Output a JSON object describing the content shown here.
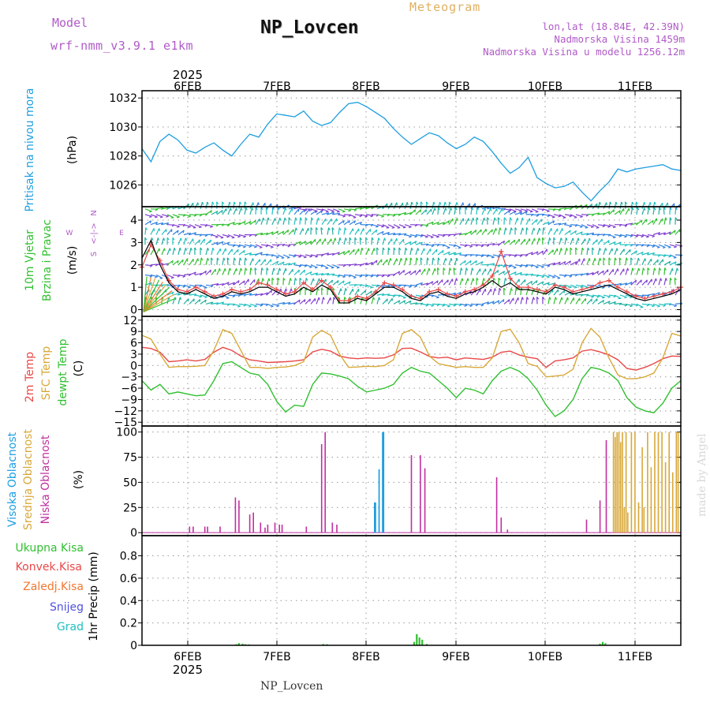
{
  "header": {
    "model_label": "Model",
    "model_name": "wrf-nmm_v3.9.1 e1km",
    "title": "NP_Lovcen",
    "meteogram": "Meteogram",
    "lonlat": "lon,lat (18.84E, 42.39N)",
    "elevation": "Nadmorska Visina 1459m",
    "model_elevation": "Nadmorska Visina u modelu 1256.12m"
  },
  "footer": {
    "station": "NP_Lovcen",
    "credit": "made by Angel"
  },
  "colors": {
    "pressure": "#1e9ee0",
    "temp2m": "#e84848",
    "sfc": "#d8a838",
    "dewpt": "#30c030",
    "high_cloud": "#1e9ee0",
    "mid_cloud": "#d8a838",
    "low_cloud": "#c030a0",
    "total_precip": "#30c030",
    "convective": "#e84848",
    "freezing": "#f07830",
    "snow": "#5050e0",
    "hail": "#20c0c0"
  },
  "chart_data": [
    {
      "type": "line",
      "panel": "pressure",
      "labels": [
        "Pritisak na nivou mora",
        "(hPa)"
      ],
      "x_ticks": [
        "6FEB",
        "7FEB",
        "8FEB",
        "9FEB",
        "10FEB",
        "11FEB"
      ],
      "x_year": "2025",
      "xlim": [
        5.5,
        11.5
      ],
      "ylim": [
        1024.5,
        1032.5
      ],
      "yticks": [
        "1026",
        "1028",
        "1030",
        "1032"
      ],
      "ytick_values": [
        1026,
        1028,
        1030,
        1032
      ],
      "x": [
        5.5,
        5.6,
        5.7,
        5.8,
        5.9,
        6.0,
        6.1,
        6.2,
        6.3,
        6.4,
        6.5,
        6.6,
        6.7,
        6.8,
        6.9,
        7.0,
        7.1,
        7.2,
        7.3,
        7.4,
        7.5,
        7.6,
        7.7,
        7.8,
        7.9,
        8.0,
        8.1,
        8.2,
        8.3,
        8.4,
        8.5,
        8.6,
        8.7,
        8.8,
        8.9,
        9.0,
        9.1,
        9.2,
        9.3,
        9.4,
        9.5,
        9.6,
        9.7,
        9.8,
        9.9,
        10.0,
        10.1,
        10.2,
        10.3,
        10.4,
        10.5,
        10.6,
        10.7,
        10.8,
        10.9,
        11.0,
        11.1,
        11.2,
        11.3,
        11.4,
        11.5
      ],
      "values": [
        1028.5,
        1027.6,
        1029.0,
        1029.5,
        1029.1,
        1028.4,
        1028.2,
        1028.6,
        1028.9,
        1028.4,
        1028.0,
        1028.8,
        1029.5,
        1029.3,
        1030.2,
        1030.9,
        1030.8,
        1030.7,
        1031.1,
        1030.4,
        1030.1,
        1030.3,
        1031.0,
        1031.6,
        1031.7,
        1031.4,
        1031.0,
        1030.6,
        1029.9,
        1029.3,
        1028.8,
        1029.2,
        1029.6,
        1029.4,
        1028.9,
        1028.5,
        1028.8,
        1029.3,
        1029.0,
        1028.3,
        1027.5,
        1026.8,
        1027.2,
        1027.9,
        1026.5,
        1026.1,
        1025.8,
        1025.9,
        1026.2,
        1025.5,
        1024.9,
        1025.6,
        1026.2,
        1027.1,
        1026.9,
        1027.1,
        1027.2,
        1027.3,
        1027.4,
        1027.1,
        1027.0
      ]
    },
    {
      "type": "line",
      "panel": "wind",
      "labels": [
        "10m Vjetar",
        "Brzina i Pravac",
        "(m/s)"
      ],
      "compass": [
        "N",
        "E",
        "S",
        "W"
      ],
      "xlim": [
        5.5,
        11.5
      ],
      "ylim": [
        -0.3,
        4.6
      ],
      "yticks": [
        "0",
        "1",
        "2",
        "3",
        "4"
      ],
      "ytick_values": [
        0,
        1,
        2,
        3,
        4
      ],
      "series": [
        {
          "name": "speed",
          "color": "#e84848",
          "x": [
            5.5,
            5.6,
            5.7,
            5.8,
            5.9,
            6.0,
            6.1,
            6.2,
            6.3,
            6.4,
            6.5,
            6.6,
            6.7,
            6.8,
            6.9,
            7.0,
            7.1,
            7.2,
            7.3,
            7.4,
            7.5,
            7.6,
            7.7,
            7.8,
            7.9,
            8.0,
            8.1,
            8.2,
            8.3,
            8.4,
            8.5,
            8.6,
            8.7,
            8.8,
            8.9,
            9.0,
            9.1,
            9.2,
            9.3,
            9.4,
            9.5,
            9.6,
            9.7,
            9.8,
            9.9,
            10.0,
            10.1,
            10.2,
            10.3,
            10.4,
            10.5,
            10.6,
            10.7,
            10.8,
            10.9,
            11.0,
            11.1,
            11.2,
            11.3,
            11.4,
            11.5
          ],
          "values": [
            1.9,
            2.9,
            2.2,
            1.3,
            0.9,
            0.8,
            1.0,
            0.8,
            0.6,
            0.7,
            0.9,
            0.8,
            0.9,
            1.2,
            1.1,
            0.9,
            0.7,
            0.8,
            1.2,
            0.9,
            1.3,
            1.0,
            0.4,
            0.4,
            0.6,
            0.5,
            0.8,
            1.2,
            1.1,
            0.9,
            0.6,
            0.5,
            0.8,
            0.9,
            0.7,
            0.6,
            0.8,
            0.9,
            1.1,
            1.5,
            2.6,
            1.4,
            1.0,
            1.0,
            0.9,
            0.8,
            1.1,
            1.0,
            0.8,
            0.9,
            1.0,
            1.2,
            1.3,
            1.0,
            0.8,
            0.6,
            0.5,
            0.6,
            0.7,
            0.8,
            1.0
          ]
        },
        {
          "name": "gust",
          "color": "#000000",
          "x": [
            5.5,
            5.6,
            5.7,
            5.8,
            5.9,
            6.0,
            6.1,
            6.2,
            6.3,
            6.4,
            6.5,
            6.6,
            6.7,
            6.8,
            6.9,
            7.0,
            7.1,
            7.2,
            7.3,
            7.4,
            7.5,
            7.6,
            7.7,
            7.8,
            7.9,
            8.0,
            8.1,
            8.2,
            8.3,
            8.4,
            8.5,
            8.6,
            8.7,
            8.8,
            8.9,
            9.0,
            9.1,
            9.2,
            9.3,
            9.4,
            9.5,
            9.6,
            9.7,
            9.8,
            9.9,
            10.0,
            10.1,
            10.2,
            10.3,
            10.4,
            10.5,
            10.6,
            10.7,
            10.8,
            10.9,
            11.0,
            11.1,
            11.2,
            11.3,
            11.4,
            11.5
          ],
          "values": [
            2.3,
            3.1,
            2.0,
            1.2,
            0.8,
            0.7,
            0.9,
            0.7,
            0.5,
            0.6,
            0.8,
            0.7,
            0.8,
            1.0,
            1.0,
            0.8,
            0.6,
            0.7,
            1.0,
            0.8,
            1.1,
            0.9,
            0.3,
            0.3,
            0.5,
            0.4,
            0.7,
            1.0,
            1.0,
            0.8,
            0.5,
            0.4,
            0.7,
            0.8,
            0.6,
            0.5,
            0.7,
            0.8,
            1.0,
            1.3,
            1.0,
            1.2,
            0.9,
            0.9,
            0.8,
            0.7,
            1.0,
            0.9,
            0.7,
            0.8,
            0.9,
            1.0,
            1.1,
            0.9,
            0.7,
            0.5,
            0.4,
            0.5,
            0.6,
            0.7,
            0.9
          ]
        }
      ]
    },
    {
      "type": "line",
      "panel": "temperature",
      "labels": [
        "2m Temp",
        "SFC Temp",
        "dewpt Temp",
        "(C)"
      ],
      "xlim": [
        5.5,
        11.5
      ],
      "ylim": [
        -16,
        13
      ],
      "yticks": [
        "12",
        "9",
        "6",
        "3",
        "0",
        "−3",
        "−6",
        "−9",
        "−12",
        "−15"
      ],
      "ytick_values": [
        12,
        9,
        6,
        3,
        0,
        -3,
        -6,
        -9,
        -12,
        -15
      ],
      "series": [
        {
          "name": "2m Temp",
          "color": "#e84848",
          "x": [
            5.5,
            5.6,
            5.7,
            5.8,
            5.9,
            6.0,
            6.1,
            6.2,
            6.3,
            6.4,
            6.5,
            6.6,
            6.7,
            6.8,
            6.9,
            7.0,
            7.1,
            7.2,
            7.3,
            7.4,
            7.5,
            7.6,
            7.7,
            7.8,
            7.9,
            8.0,
            8.1,
            8.2,
            8.3,
            8.4,
            8.5,
            8.6,
            8.7,
            8.8,
            8.9,
            9.0,
            9.1,
            9.2,
            9.3,
            9.4,
            9.5,
            9.6,
            9.7,
            9.8,
            9.9,
            10.0,
            10.1,
            10.2,
            10.3,
            10.4,
            10.5,
            10.6,
            10.7,
            10.8,
            10.9,
            11.0,
            11.1,
            11.2,
            11.3,
            11.4,
            11.5
          ],
          "values": [
            4.8,
            4.5,
            3.5,
            1.0,
            1.2,
            1.5,
            1.2,
            1.6,
            3.5,
            4.8,
            4.0,
            2.5,
            1.5,
            1.2,
            0.8,
            0.9,
            1.0,
            1.2,
            1.5,
            3.6,
            4.3,
            3.8,
            2.5,
            2.0,
            1.8,
            2.0,
            1.9,
            2.0,
            2.8,
            4.5,
            4.6,
            3.6,
            2.4,
            2.0,
            2.2,
            1.5,
            2.0,
            1.8,
            1.6,
            2.2,
            3.5,
            3.8,
            2.8,
            2.2,
            1.8,
            -0.5,
            1.2,
            1.5,
            2.0,
            3.8,
            4.2,
            3.6,
            2.8,
            1.5,
            -0.8,
            -1.2,
            -0.5,
            0.5,
            1.8,
            2.5,
            2.4
          ]
        },
        {
          "name": "SFC Temp",
          "color": "#d8a838",
          "x": [
            5.5,
            5.6,
            5.7,
            5.8,
            5.9,
            6.0,
            6.1,
            6.2,
            6.3,
            6.4,
            6.5,
            6.6,
            6.7,
            6.8,
            6.9,
            7.0,
            7.1,
            7.2,
            7.3,
            7.4,
            7.5,
            7.6,
            7.7,
            7.8,
            7.9,
            8.0,
            8.1,
            8.2,
            8.3,
            8.4,
            8.5,
            8.6,
            8.7,
            8.8,
            8.9,
            9.0,
            9.1,
            9.2,
            9.3,
            9.4,
            9.5,
            9.6,
            9.7,
            9.8,
            9.9,
            10.0,
            10.1,
            10.2,
            10.3,
            10.4,
            10.5,
            10.6,
            10.7,
            10.8,
            10.9,
            11.0,
            11.1,
            11.2,
            11.3,
            11.4,
            11.5
          ],
          "values": [
            8.0,
            7.0,
            3.0,
            -0.5,
            -0.3,
            -0.3,
            -0.2,
            0.0,
            4.0,
            9.5,
            8.5,
            4.0,
            -0.5,
            -0.5,
            -0.8,
            -0.5,
            -0.4,
            0.0,
            1.0,
            7.5,
            9.3,
            8.0,
            3.0,
            -0.5,
            -0.4,
            -0.2,
            -0.3,
            0.0,
            1.5,
            8.5,
            9.5,
            7.5,
            2.5,
            0.5,
            0.0,
            -0.5,
            -0.3,
            -0.5,
            -0.5,
            2.0,
            9.0,
            9.6,
            6.0,
            0.5,
            -0.2,
            -3.0,
            -2.8,
            -2.5,
            -1.0,
            6.0,
            9.8,
            7.5,
            2.0,
            -2.5,
            -3.5,
            -3.5,
            -3.0,
            -2.0,
            2.0,
            8.5,
            7.8
          ]
        },
        {
          "name": "dewpt Temp",
          "color": "#30c030",
          "x": [
            5.5,
            5.6,
            5.7,
            5.8,
            5.9,
            6.0,
            6.1,
            6.2,
            6.3,
            6.4,
            6.5,
            6.6,
            6.7,
            6.8,
            6.9,
            7.0,
            7.1,
            7.2,
            7.3,
            7.4,
            7.5,
            7.6,
            7.7,
            7.8,
            7.9,
            8.0,
            8.1,
            8.2,
            8.3,
            8.4,
            8.5,
            8.6,
            8.7,
            8.8,
            8.9,
            9.0,
            9.1,
            9.2,
            9.3,
            9.4,
            9.5,
            9.6,
            9.7,
            9.8,
            9.9,
            10.0,
            10.1,
            10.2,
            10.3,
            10.4,
            10.5,
            10.6,
            10.7,
            10.8,
            10.9,
            11.0,
            11.1,
            11.2,
            11.3,
            11.4,
            11.5
          ],
          "values": [
            -4.0,
            -6.5,
            -5.0,
            -7.5,
            -7.0,
            -7.5,
            -8.0,
            -7.8,
            -4.0,
            0.5,
            1.0,
            -0.5,
            -2.0,
            -2.5,
            -5.0,
            -9.5,
            -12.3,
            -10.5,
            -10.8,
            -5.0,
            -2.0,
            -2.2,
            -2.8,
            -3.5,
            -5.5,
            -7.0,
            -6.5,
            -6.0,
            -5.0,
            -2.0,
            -0.5,
            -1.5,
            -2.0,
            -4.0,
            -6.0,
            -8.5,
            -6.0,
            -6.5,
            -7.5,
            -4.0,
            -1.5,
            -0.5,
            -1.5,
            -3.5,
            -6.5,
            -10.5,
            -13.5,
            -12.0,
            -9.0,
            -3.5,
            -0.5,
            -1.0,
            -2.0,
            -4.0,
            -8.5,
            -11.0,
            -12.0,
            -12.5,
            -10.0,
            -6.0,
            -4.0
          ]
        }
      ]
    },
    {
      "type": "bar",
      "panel": "cloud",
      "labels": [
        "Visoka Oblacnost",
        "Srednja Oblacnost",
        "Niska Oblacnost",
        "(%)"
      ],
      "xlim": [
        5.5,
        11.5
      ],
      "ylim": [
        -3,
        106
      ],
      "yticks": [
        "0",
        "25",
        "50",
        "75",
        "100"
      ],
      "ytick_values": [
        0,
        25,
        50,
        75,
        100
      ],
      "series": [
        {
          "name": "Visoka Oblacnost",
          "color": "#1e9ee0",
          "bar_width": 0.015,
          "x": [
            8.09,
            8.1,
            8.14,
            8.18,
            8.19
          ],
          "values": [
            30,
            30,
            63,
            100,
            100
          ]
        },
        {
          "name": "Srednja Oblacnost",
          "color": "#d8a838",
          "bar_width": 0.006,
          "x": [
            10.75,
            10.77,
            10.79,
            10.81,
            10.83,
            10.85,
            10.87,
            10.89,
            10.91,
            10.95,
            10.99,
            11.03,
            11.07,
            11.09,
            11.13,
            11.17,
            11.21,
            11.25,
            11.29,
            11.33,
            11.37,
            11.41,
            11.45,
            11.47
          ],
          "values": [
            100,
            95,
            100,
            100,
            90,
            100,
            25,
            100,
            20,
            100,
            100,
            30,
            85,
            25,
            100,
            65,
            100,
            100,
            100,
            70,
            100,
            60,
            100,
            100
          ]
        },
        {
          "name": "Niska Oblacnost",
          "color": "#c030a0",
          "bar_width": 0.006,
          "x": [
            6.03,
            6.07,
            6.2,
            6.23,
            6.37,
            6.54,
            6.58,
            6.7,
            6.74,
            6.82,
            6.87,
            6.9,
            6.98,
            7.03,
            7.06,
            7.33,
            7.5,
            7.54,
            7.62,
            7.67,
            8.5,
            8.6,
            8.65,
            9.45,
            9.5,
            9.57,
            10.45,
            10.6,
            10.67
          ],
          "values": [
            6,
            6,
            6,
            6,
            6,
            35,
            32,
            18,
            20,
            10,
            5,
            8,
            10,
            8,
            8,
            6,
            88,
            100,
            10,
            8,
            77,
            77,
            64,
            55,
            15,
            3,
            13,
            32,
            92
          ]
        }
      ]
    },
    {
      "type": "bar",
      "panel": "precipitation",
      "labels": [
        "Ukupna Kisa",
        "Konvek.Kisa",
        "Zaledj.Kisa",
        "Snijeg",
        "Grad",
        "1hr Precip (mm)"
      ],
      "xlim": [
        5.5,
        11.5
      ],
      "ylim": [
        0,
        0.98
      ],
      "yticks": [
        "0",
        "0.2",
        "0.4",
        "0.6",
        "0.8"
      ],
      "ytick_values": [
        0,
        0.2,
        0.4,
        0.6,
        0.8
      ],
      "series": [
        {
          "name": "Ukupna Kisa",
          "color": "#30c030",
          "bar_width": 0.015,
          "x": [
            6.55,
            6.58,
            6.62,
            6.65,
            6.69,
            7.52,
            7.56,
            8.53,
            8.56,
            8.59,
            8.62,
            8.67,
            10.6,
            10.63,
            10.66
          ],
          "values": [
            0.01,
            0.02,
            0.015,
            0.01,
            0.008,
            0.012,
            0.01,
            0.03,
            0.1,
            0.07,
            0.05,
            0.012,
            0.015,
            0.03,
            0.02
          ]
        }
      ]
    }
  ]
}
